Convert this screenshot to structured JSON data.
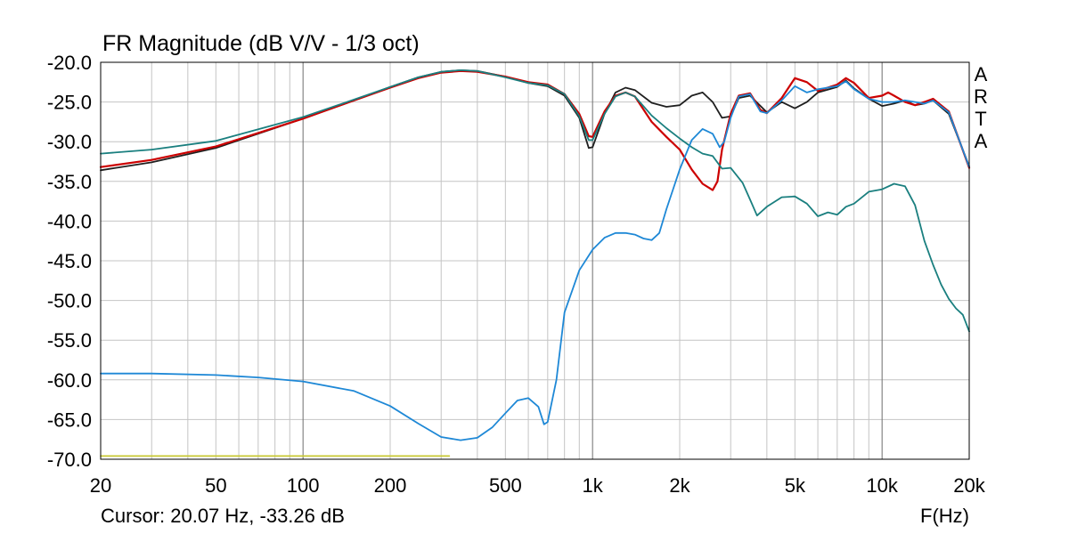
{
  "chart_data": {
    "type": "line",
    "title": "FR Magnitude (dB V/V - 1/3 oct)",
    "xlabel": "F(Hz)",
    "ylabel": "",
    "xscale": "log",
    "xlim": [
      20,
      20000
    ],
    "ylim": [
      -70,
      -20
    ],
    "grid": true,
    "x_tick_labels": [
      {
        "value": 20,
        "label": "20"
      },
      {
        "value": 50,
        "label": "50"
      },
      {
        "value": 100,
        "label": "100"
      },
      {
        "value": 200,
        "label": "200"
      },
      {
        "value": 500,
        "label": "500"
      },
      {
        "value": 1000,
        "label": "1k"
      },
      {
        "value": 2000,
        "label": "2k"
      },
      {
        "value": 5000,
        "label": "5k"
      },
      {
        "value": 10000,
        "label": "10k"
      },
      {
        "value": 20000,
        "label": "20k"
      }
    ],
    "y_tick_labels": [
      {
        "value": -20,
        "label": "-20.0"
      },
      {
        "value": -25,
        "label": "-25.0"
      },
      {
        "value": -30,
        "label": "-30.0"
      },
      {
        "value": -35,
        "label": "-35.0"
      },
      {
        "value": -40,
        "label": "-40.0"
      },
      {
        "value": -45,
        "label": "-45.0"
      },
      {
        "value": -50,
        "label": "-50.0"
      },
      {
        "value": -55,
        "label": "-55.0"
      },
      {
        "value": -60,
        "label": "-60.0"
      },
      {
        "value": -65,
        "label": "-65.0"
      },
      {
        "value": -70,
        "label": "-70.0"
      }
    ],
    "series": [
      {
        "color": "#1f1f1f",
        "points": [
          [
            20,
            -33.6
          ],
          [
            30,
            -32.6
          ],
          [
            50,
            -30.8
          ],
          [
            100,
            -27.1
          ],
          [
            150,
            -24.8
          ],
          [
            200,
            -23.1
          ],
          [
            250,
            -21.9
          ],
          [
            300,
            -21.2
          ],
          [
            350,
            -21.0
          ],
          [
            400,
            -21.1
          ],
          [
            500,
            -21.8
          ],
          [
            600,
            -22.6
          ],
          [
            700,
            -23.0
          ],
          [
            800,
            -24.2
          ],
          [
            900,
            -27.0
          ],
          [
            970,
            -30.8
          ],
          [
            1000,
            -30.7
          ],
          [
            1100,
            -26.5
          ],
          [
            1200,
            -23.8
          ],
          [
            1300,
            -23.2
          ],
          [
            1400,
            -23.5
          ],
          [
            1600,
            -25.1
          ],
          [
            1800,
            -25.6
          ],
          [
            2000,
            -25.4
          ],
          [
            2200,
            -24.2
          ],
          [
            2400,
            -23.8
          ],
          [
            2600,
            -25.0
          ],
          [
            2800,
            -27.0
          ],
          [
            3000,
            -26.8
          ],
          [
            3200,
            -24.5
          ],
          [
            3500,
            -24.2
          ],
          [
            4000,
            -26.3
          ],
          [
            4500,
            -25.0
          ],
          [
            5000,
            -25.8
          ],
          [
            5500,
            -25.0
          ],
          [
            6000,
            -23.8
          ],
          [
            7000,
            -23.1
          ],
          [
            7500,
            -22.3
          ],
          [
            8000,
            -23.3
          ],
          [
            9000,
            -24.6
          ],
          [
            10000,
            -25.5
          ],
          [
            11000,
            -25.2
          ],
          [
            12000,
            -24.8
          ],
          [
            13000,
            -25.4
          ],
          [
            14000,
            -25.2
          ],
          [
            15000,
            -24.8
          ],
          [
            17000,
            -26.5
          ],
          [
            20000,
            -33.1
          ]
        ]
      },
      {
        "color": "#cc0000",
        "points": [
          [
            20,
            -33.2
          ],
          [
            30,
            -32.3
          ],
          [
            50,
            -30.6
          ],
          [
            100,
            -27.1
          ],
          [
            150,
            -24.8
          ],
          [
            200,
            -23.2
          ],
          [
            250,
            -22.0
          ],
          [
            300,
            -21.3
          ],
          [
            350,
            -21.1
          ],
          [
            400,
            -21.2
          ],
          [
            500,
            -21.8
          ],
          [
            600,
            -22.5
          ],
          [
            700,
            -22.8
          ],
          [
            800,
            -24.0
          ],
          [
            900,
            -26.5
          ],
          [
            970,
            -29.3
          ],
          [
            1000,
            -29.4
          ],
          [
            1100,
            -26.2
          ],
          [
            1200,
            -24.2
          ],
          [
            1300,
            -23.8
          ],
          [
            1400,
            -24.3
          ],
          [
            1600,
            -27.5
          ],
          [
            1800,
            -29.4
          ],
          [
            2000,
            -31.0
          ],
          [
            2200,
            -33.5
          ],
          [
            2400,
            -35.3
          ],
          [
            2600,
            -36.1
          ],
          [
            2700,
            -35.0
          ],
          [
            2800,
            -31.0
          ],
          [
            3000,
            -26.5
          ],
          [
            3200,
            -24.2
          ],
          [
            3500,
            -23.9
          ],
          [
            3800,
            -26.0
          ],
          [
            4000,
            -26.4
          ],
          [
            4500,
            -24.5
          ],
          [
            5000,
            -22.0
          ],
          [
            5500,
            -22.5
          ],
          [
            6000,
            -23.6
          ],
          [
            7000,
            -22.8
          ],
          [
            7500,
            -22.0
          ],
          [
            8000,
            -22.6
          ],
          [
            9000,
            -24.5
          ],
          [
            10000,
            -24.2
          ],
          [
            10500,
            -23.8
          ],
          [
            11000,
            -24.2
          ],
          [
            12000,
            -25.0
          ],
          [
            13000,
            -25.4
          ],
          [
            14000,
            -25.0
          ],
          [
            15000,
            -24.6
          ],
          [
            17000,
            -26.2
          ],
          [
            20000,
            -33.3
          ]
        ]
      },
      {
        "color": "#1a7f7f",
        "points": [
          [
            20,
            -31.5
          ],
          [
            30,
            -31.0
          ],
          [
            50,
            -29.9
          ],
          [
            100,
            -26.9
          ],
          [
            150,
            -24.7
          ],
          [
            200,
            -23.1
          ],
          [
            250,
            -21.9
          ],
          [
            300,
            -21.2
          ],
          [
            350,
            -21.0
          ],
          [
            400,
            -21.1
          ],
          [
            500,
            -21.9
          ],
          [
            600,
            -22.6
          ],
          [
            700,
            -22.9
          ],
          [
            800,
            -24.0
          ],
          [
            900,
            -26.8
          ],
          [
            970,
            -29.8
          ],
          [
            1000,
            -29.8
          ],
          [
            1100,
            -26.5
          ],
          [
            1200,
            -24.3
          ],
          [
            1300,
            -23.8
          ],
          [
            1400,
            -24.3
          ],
          [
            1600,
            -26.7
          ],
          [
            1800,
            -28.3
          ],
          [
            2000,
            -29.6
          ],
          [
            2200,
            -30.7
          ],
          [
            2400,
            -31.5
          ],
          [
            2600,
            -31.8
          ],
          [
            2800,
            -33.4
          ],
          [
            3000,
            -33.3
          ],
          [
            3300,
            -35.2
          ],
          [
            3500,
            -37.3
          ],
          [
            3700,
            -39.3
          ],
          [
            4000,
            -38.2
          ],
          [
            4500,
            -37.0
          ],
          [
            5000,
            -36.9
          ],
          [
            5500,
            -37.8
          ],
          [
            6000,
            -39.4
          ],
          [
            6500,
            -38.9
          ],
          [
            7000,
            -39.2
          ],
          [
            7500,
            -38.2
          ],
          [
            8000,
            -37.8
          ],
          [
            9000,
            -36.3
          ],
          [
            10000,
            -36.0
          ],
          [
            11000,
            -35.3
          ],
          [
            12000,
            -35.6
          ],
          [
            13000,
            -38.0
          ],
          [
            14000,
            -42.5
          ],
          [
            15000,
            -45.5
          ],
          [
            16000,
            -48.0
          ],
          [
            17000,
            -49.8
          ],
          [
            18000,
            -51.0
          ],
          [
            19000,
            -51.8
          ],
          [
            20000,
            -53.9
          ]
        ]
      },
      {
        "color": "#1e88d6",
        "points": [
          [
            20,
            -59.2
          ],
          [
            30,
            -59.2
          ],
          [
            50,
            -59.4
          ],
          [
            70,
            -59.7
          ],
          [
            100,
            -60.2
          ],
          [
            150,
            -61.4
          ],
          [
            200,
            -63.3
          ],
          [
            250,
            -65.5
          ],
          [
            300,
            -67.2
          ],
          [
            350,
            -67.6
          ],
          [
            400,
            -67.3
          ],
          [
            450,
            -66.0
          ],
          [
            500,
            -64.2
          ],
          [
            550,
            -62.6
          ],
          [
            600,
            -62.3
          ],
          [
            650,
            -63.4
          ],
          [
            680,
            -65.6
          ],
          [
            700,
            -65.3
          ],
          [
            750,
            -60.0
          ],
          [
            800,
            -51.5
          ],
          [
            900,
            -46.2
          ],
          [
            1000,
            -43.6
          ],
          [
            1100,
            -42.1
          ],
          [
            1200,
            -41.5
          ],
          [
            1300,
            -41.5
          ],
          [
            1400,
            -41.7
          ],
          [
            1500,
            -42.2
          ],
          [
            1600,
            -42.4
          ],
          [
            1700,
            -41.5
          ],
          [
            1800,
            -38.5
          ],
          [
            2000,
            -33.5
          ],
          [
            2200,
            -29.8
          ],
          [
            2400,
            -28.4
          ],
          [
            2600,
            -29.0
          ],
          [
            2750,
            -30.7
          ],
          [
            2850,
            -30.0
          ],
          [
            3000,
            -27.0
          ],
          [
            3200,
            -24.3
          ],
          [
            3500,
            -24.0
          ],
          [
            3800,
            -26.2
          ],
          [
            4000,
            -26.4
          ],
          [
            4500,
            -24.8
          ],
          [
            5000,
            -23.0
          ],
          [
            5500,
            -23.8
          ],
          [
            6000,
            -23.4
          ],
          [
            7000,
            -23.0
          ],
          [
            7500,
            -22.4
          ],
          [
            8000,
            -23.4
          ],
          [
            9000,
            -24.6
          ],
          [
            10000,
            -25.0
          ],
          [
            11000,
            -25.0
          ],
          [
            12000,
            -24.8
          ],
          [
            13000,
            -25.0
          ],
          [
            14000,
            -25.2
          ],
          [
            15000,
            -24.8
          ],
          [
            17000,
            -26.3
          ],
          [
            20000,
            -33.2
          ]
        ]
      },
      {
        "color": "#c8c832",
        "points": [
          [
            20,
            -69.6
          ],
          [
            320,
            -69.6
          ]
        ]
      }
    ],
    "legend": "none"
  },
  "brand": {
    "letters": [
      "A",
      "R",
      "T",
      "A"
    ]
  },
  "cursor": {
    "text": "Cursor: 20.07 Hz, -33.26 dB"
  },
  "colors": {
    "grid": "#c4c4c4",
    "major_grid": "#6e6e6e",
    "frame": "#000000"
  }
}
